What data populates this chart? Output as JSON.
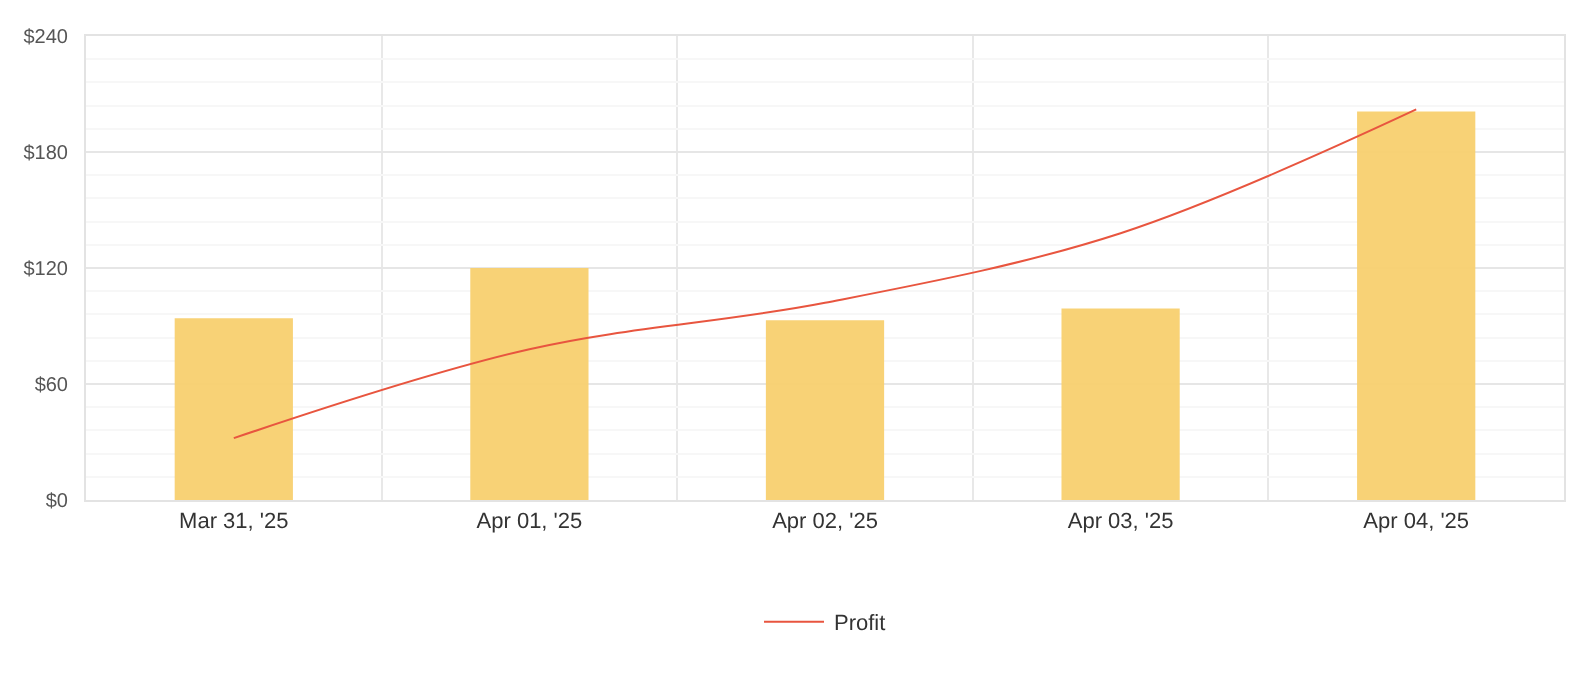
{
  "chart_data": {
    "type": "bar",
    "categories": [
      "Mar 31, '25",
      "Apr 01, '25",
      "Apr 02, '25",
      "Apr 03, '25",
      "Apr 04, '25"
    ],
    "series": [
      {
        "color": "#f8d06f",
        "values": [
          94,
          120,
          93,
          99,
          201
        ]
      },
      {
        "type": "line",
        "name": "Profit",
        "color": "#e8553f",
        "values": [
          32,
          78,
          102,
          138,
          202
        ]
      }
    ],
    "ylim": [
      0,
      240
    ],
    "yticks": [
      {
        "value": 0,
        "label": "$0"
      },
      {
        "value": 60,
        "label": "$60"
      },
      {
        "value": 120,
        "label": "$120"
      },
      {
        "value": 180,
        "label": "$180"
      },
      {
        "value": 240,
        "label": "$240"
      }
    ],
    "grid": true,
    "legend": "bottom",
    "marker": "none",
    "line_style": "solid"
  }
}
